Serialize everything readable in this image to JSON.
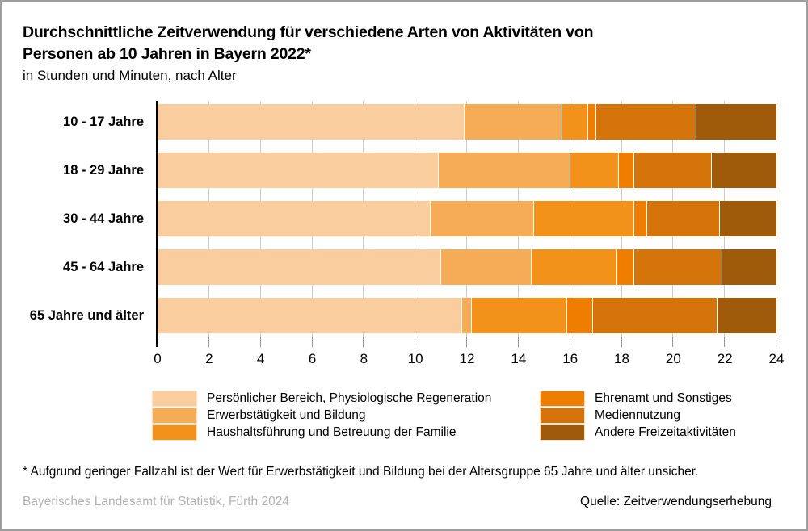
{
  "header": {
    "title_line1": "Durchschnittliche Zeitverwendung für verschiedene Arten von Aktivitäten von",
    "title_line2": "Personen ab 10 Jahren in Bayern 2022*",
    "subtitle": "in Stunden und Minuten, nach Alter"
  },
  "chart_data": {
    "type": "bar",
    "orientation": "horizontal",
    "stacked": true,
    "unit": "hours",
    "title": "Durchschnittliche Zeitverwendung für verschiedene Arten von Aktivitäten von Personen ab 10 Jahren in Bayern 2022*",
    "subtitle": "in Stunden und Minuten, nach Alter",
    "categories": [
      "10 - 17 Jahre",
      "18 - 29 Jahre",
      "30 - 44 Jahre",
      "45 - 64 Jahre",
      "65 Jahre und älter"
    ],
    "xlim": [
      0,
      24
    ],
    "x_ticks": [
      0,
      2,
      4,
      6,
      8,
      10,
      12,
      14,
      16,
      18,
      20,
      22,
      24
    ],
    "grid": true,
    "legend_position": "bottom",
    "series": [
      {
        "name": "Persönlicher Bereich, Physiologische Regeneration",
        "color": "#FACD9E",
        "values": [
          11.9,
          10.9,
          10.6,
          11.0,
          11.8
        ]
      },
      {
        "name": "Erwerbstätigkeit und Bildung",
        "color": "#F6AB57",
        "values": [
          3.8,
          5.1,
          4.0,
          3.5,
          0.4
        ]
      },
      {
        "name": "Haushaltsführung und Betreuung der Familie",
        "color": "#F3921A",
        "values": [
          1.0,
          1.9,
          3.9,
          3.3,
          3.7
        ]
      },
      {
        "name": "Ehrenamt und Sonstiges",
        "color": "#EF7D00",
        "values": [
          0.3,
          0.6,
          0.5,
          0.7,
          1.0
        ]
      },
      {
        "name": "Mediennutzung",
        "color": "#D3730A",
        "values": [
          3.9,
          3.0,
          2.8,
          3.4,
          4.8
        ]
      },
      {
        "name": "Andere Freizeitaktivitäten",
        "color": "#A05B0A",
        "values": [
          3.1,
          2.5,
          2.2,
          2.1,
          2.3
        ]
      }
    ],
    "legend_columns": [
      [
        0,
        1,
        2
      ],
      [
        3,
        4,
        5
      ]
    ],
    "axis_colors": {
      "grid": "#cbcbcb",
      "x_axis": "#7f7f7f",
      "tick": "#999999",
      "y_axis": "#000000"
    }
  },
  "footnote": "* Aufgrund geringer Fallzahl ist der Wert für Erwerbstätigkeit und Bildung bei der Altersgruppe 65 Jahre und älter unsicher.",
  "footer": {
    "publisher": "Bayerisches Landesamt für Statistik, Fürth 2024",
    "source": "Quelle: Zeitverwendungserhebung"
  }
}
